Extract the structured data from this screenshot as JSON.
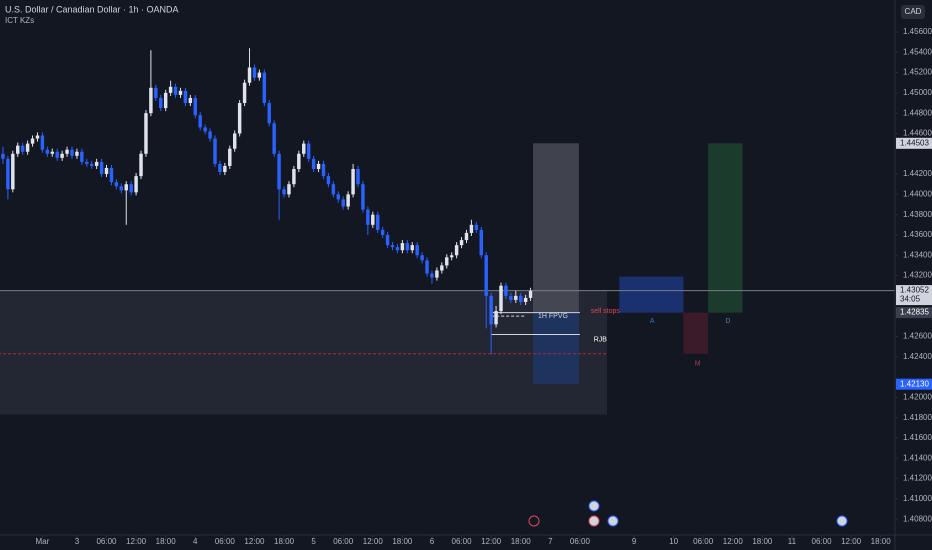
{
  "chart_data": {
    "type": "candlestick",
    "title": "U.S. Dollar / Canadian Dollar · 1h · OANDA",
    "indicator": "ICT KZs",
    "currency": "CAD",
    "up_color": "#e0e3eb",
    "down_color": "#2962ff",
    "xlim": [
      -15.6,
      165.9
    ],
    "ylim": [
      1.40644,
      1.45915
    ],
    "xticks": [
      {
        "value": -7,
        "label": "Mar"
      },
      {
        "value": 0,
        "label": "3"
      },
      {
        "value": 6,
        "label": "06:00"
      },
      {
        "value": 12,
        "label": "12:00"
      },
      {
        "value": 18,
        "label": "18:00"
      },
      {
        "value": 24,
        "label": "4"
      },
      {
        "value": 30,
        "label": "06:00"
      },
      {
        "value": 36,
        "label": "12:00"
      },
      {
        "value": 42,
        "label": "18:00"
      },
      {
        "value": 48,
        "label": "5"
      },
      {
        "value": 54,
        "label": "06:00"
      },
      {
        "value": 60,
        "label": "12:00"
      },
      {
        "value": 66,
        "label": "18:00"
      },
      {
        "value": 72,
        "label": "6"
      },
      {
        "value": 78,
        "label": "06:00"
      },
      {
        "value": 84,
        "label": "12:00"
      },
      {
        "value": 90,
        "label": "18:00"
      },
      {
        "value": 96,
        "label": "7"
      },
      {
        "value": 102,
        "label": "06:00"
      },
      {
        "value": 113,
        "label": "9"
      },
      {
        "value": 121,
        "label": "10"
      },
      {
        "value": 127,
        "label": "06:00"
      },
      {
        "value": 133,
        "label": "12:00"
      },
      {
        "value": 139,
        "label": "18:00"
      },
      {
        "value": 145,
        "label": "11"
      },
      {
        "value": 151,
        "label": "06:00"
      },
      {
        "value": 157,
        "label": "12:00"
      },
      {
        "value": 163,
        "label": "18:00"
      }
    ],
    "yticks": [
      {
        "value": 1.456,
        "label": "1.45600"
      },
      {
        "value": 1.454,
        "label": "1.45400"
      },
      {
        "value": 1.452,
        "label": "1.45200"
      },
      {
        "value": 1.45,
        "label": "1.45000"
      },
      {
        "value": 1.448,
        "label": "1.44800"
      },
      {
        "value": 1.446,
        "label": "1.44600"
      },
      {
        "value": 1.442,
        "label": "1.44200"
      },
      {
        "value": 1.44,
        "label": "1.44000"
      },
      {
        "value": 1.438,
        "label": "1.43800"
      },
      {
        "value": 1.436,
        "label": "1.43600"
      },
      {
        "value": 1.434,
        "label": "1.43400"
      },
      {
        "value": 1.432,
        "label": "1.43200"
      },
      {
        "value": 1.426,
        "label": "1.42600"
      },
      {
        "value": 1.424,
        "label": "1.42400"
      },
      {
        "value": 1.42,
        "label": "1.42000"
      },
      {
        "value": 1.418,
        "label": "1.41800"
      },
      {
        "value": 1.416,
        "label": "1.41600"
      },
      {
        "value": 1.414,
        "label": "1.41400"
      },
      {
        "value": 1.412,
        "label": "1.41200"
      },
      {
        "value": 1.41,
        "label": "1.41000"
      },
      {
        "value": 1.408,
        "label": "1.40800"
      }
    ],
    "x": [
      -15,
      -14,
      -13,
      -12,
      -11,
      -10,
      -9,
      -8,
      -7,
      -6,
      -5,
      -4,
      -3,
      -2,
      -1,
      0,
      1,
      2,
      3,
      4,
      5,
      6,
      7,
      8,
      9,
      10,
      11,
      12,
      13,
      14,
      15,
      16,
      17,
      18,
      19,
      20,
      21,
      22,
      23,
      24,
      25,
      26,
      27,
      28,
      29,
      30,
      31,
      32,
      33,
      34,
      35,
      36,
      37,
      38,
      39,
      40,
      41,
      42,
      43,
      44,
      45,
      46,
      47,
      48,
      49,
      50,
      51,
      52,
      53,
      54,
      55,
      56,
      57,
      58,
      59,
      60,
      61,
      62,
      63,
      64,
      65,
      66,
      67,
      68,
      69,
      70,
      71,
      72,
      73,
      74,
      75,
      76,
      77,
      78,
      79,
      80,
      81,
      82,
      83,
      84,
      85,
      86,
      87,
      88,
      89,
      90,
      91,
      92
    ],
    "candles": [
      [
        1.444,
        1.4447,
        1.443,
        1.4435
      ],
      [
        1.4435,
        1.4438,
        1.4395,
        1.4405
      ],
      [
        1.4405,
        1.4443,
        1.4402,
        1.444
      ],
      [
        1.444,
        1.4451,
        1.4437,
        1.4448
      ],
      [
        1.4448,
        1.4451,
        1.4439,
        1.4442
      ],
      [
        1.4442,
        1.4453,
        1.4439,
        1.445
      ],
      [
        1.445,
        1.4458,
        1.4447,
        1.4455
      ],
      [
        1.4455,
        1.4461,
        1.4452,
        1.4458
      ],
      [
        1.4458,
        1.4461,
        1.4441,
        1.4444
      ],
      [
        1.4444,
        1.4447,
        1.4437,
        1.444
      ],
      [
        1.444,
        1.4445,
        1.4437,
        1.4442
      ],
      [
        1.4442,
        1.4445,
        1.4433,
        1.4436
      ],
      [
        1.4436,
        1.4443,
        1.4433,
        1.444
      ],
      [
        1.444,
        1.4447,
        1.4437,
        1.4444
      ],
      [
        1.4444,
        1.4447,
        1.4435,
        1.4438
      ],
      [
        1.4438,
        1.4445,
        1.4435,
        1.4442
      ],
      [
        1.4442,
        1.4445,
        1.4429,
        1.4432
      ],
      [
        1.4432,
        1.4435,
        1.4427,
        1.443
      ],
      [
        1.443,
        1.4433,
        1.4425,
        1.4428
      ],
      [
        1.4428,
        1.4435,
        1.4425,
        1.4432
      ],
      [
        1.4432,
        1.4435,
        1.4417,
        1.442
      ],
      [
        1.442,
        1.4429,
        1.4417,
        1.4426
      ],
      [
        1.4426,
        1.4429,
        1.4409,
        1.4412
      ],
      [
        1.4412,
        1.4415,
        1.4405,
        1.4408
      ],
      [
        1.4408,
        1.4411,
        1.4401,
        1.4404
      ],
      [
        1.4404,
        1.4413,
        1.437,
        1.441
      ],
      [
        1.441,
        1.4413,
        1.4399,
        1.4402
      ],
      [
        1.4402,
        1.4421,
        1.4399,
        1.4418
      ],
      [
        1.4418,
        1.4443,
        1.4415,
        1.444
      ],
      [
        1.444,
        1.4483,
        1.4437,
        1.448
      ],
      [
        1.448,
        1.4542,
        1.4477,
        1.4505
      ],
      [
        1.4505,
        1.4508,
        1.4492,
        1.4495
      ],
      [
        1.4495,
        1.4498,
        1.4482,
        1.4485
      ],
      [
        1.4485,
        1.4503,
        1.4482,
        1.45
      ],
      [
        1.45,
        1.4512,
        1.4497,
        1.4506
      ],
      [
        1.4506,
        1.4509,
        1.4495,
        1.4498
      ],
      [
        1.4498,
        1.4505,
        1.4495,
        1.4502
      ],
      [
        1.4502,
        1.4505,
        1.4487,
        1.449
      ],
      [
        1.449,
        1.4498,
        1.4487,
        1.4495
      ],
      [
        1.4495,
        1.4498,
        1.4475,
        1.4478
      ],
      [
        1.4478,
        1.4481,
        1.4463,
        1.4466
      ],
      [
        1.4466,
        1.4469,
        1.4459,
        1.4462
      ],
      [
        1.4462,
        1.4465,
        1.4452,
        1.4455
      ],
      [
        1.4455,
        1.4458,
        1.4427,
        1.443
      ],
      [
        1.443,
        1.4433,
        1.4419,
        1.4422
      ],
      [
        1.4422,
        1.4431,
        1.4419,
        1.4428
      ],
      [
        1.4428,
        1.4448,
        1.4425,
        1.4445
      ],
      [
        1.4445,
        1.4463,
        1.4442,
        1.446
      ],
      [
        1.446,
        1.4493,
        1.4457,
        1.449
      ],
      [
        1.449,
        1.4513,
        1.4487,
        1.451
      ],
      [
        1.451,
        1.4544,
        1.4507,
        1.4525
      ],
      [
        1.4525,
        1.4528,
        1.4512,
        1.4515
      ],
      [
        1.4515,
        1.4523,
        1.4512,
        1.452
      ],
      [
        1.452,
        1.4523,
        1.4487,
        1.449
      ],
      [
        1.449,
        1.4493,
        1.4467,
        1.447
      ],
      [
        1.447,
        1.4473,
        1.4437,
        1.444
      ],
      [
        1.444,
        1.4443,
        1.4375,
        1.4405
      ],
      [
        1.4405,
        1.4408,
        1.4397,
        1.44
      ],
      [
        1.44,
        1.4413,
        1.4397,
        1.441
      ],
      [
        1.441,
        1.4428,
        1.4407,
        1.4425
      ],
      [
        1.4425,
        1.4443,
        1.4422,
        1.444
      ],
      [
        1.444,
        1.4453,
        1.4437,
        1.445
      ],
      [
        1.445,
        1.4453,
        1.4432,
        1.4435
      ],
      [
        1.4435,
        1.4438,
        1.4422,
        1.4425
      ],
      [
        1.4425,
        1.4433,
        1.4422,
        1.443
      ],
      [
        1.443,
        1.4433,
        1.4415,
        1.4418
      ],
      [
        1.4418,
        1.4421,
        1.4407,
        1.441
      ],
      [
        1.441,
        1.4413,
        1.4397,
        1.44
      ],
      [
        1.44,
        1.4403,
        1.4392,
        1.4395
      ],
      [
        1.4395,
        1.4398,
        1.4385,
        1.4388
      ],
      [
        1.4388,
        1.4403,
        1.4385,
        1.44
      ],
      [
        1.44,
        1.443,
        1.4397,
        1.4425
      ],
      [
        1.4425,
        1.4428,
        1.4407,
        1.441
      ],
      [
        1.441,
        1.4413,
        1.4382,
        1.4385
      ],
      [
        1.4385,
        1.4388,
        1.436,
        1.437
      ],
      [
        1.437,
        1.4383,
        1.4367,
        1.438
      ],
      [
        1.438,
        1.4383,
        1.4362,
        1.4365
      ],
      [
        1.4365,
        1.4368,
        1.4357,
        1.436
      ],
      [
        1.436,
        1.4363,
        1.4347,
        1.435
      ],
      [
        1.435,
        1.4353,
        1.4345,
        1.4348
      ],
      [
        1.4348,
        1.4351,
        1.4342,
        1.4345
      ],
      [
        1.4345,
        1.4355,
        1.4342,
        1.4352
      ],
      [
        1.4352,
        1.4355,
        1.4342,
        1.4345
      ],
      [
        1.4345,
        1.4353,
        1.4342,
        1.435
      ],
      [
        1.435,
        1.4353,
        1.4337,
        1.434
      ],
      [
        1.434,
        1.4343,
        1.4332,
        1.4335
      ],
      [
        1.4335,
        1.4338,
        1.4319,
        1.4322
      ],
      [
        1.4322,
        1.4325,
        1.4312,
        1.4318
      ],
      [
        1.4318,
        1.4328,
        1.4315,
        1.4325
      ],
      [
        1.4325,
        1.4333,
        1.4322,
        1.433
      ],
      [
        1.433,
        1.4341,
        1.4327,
        1.4338
      ],
      [
        1.4338,
        1.4343,
        1.4335,
        1.434
      ],
      [
        1.434,
        1.4353,
        1.4337,
        1.435
      ],
      [
        1.435,
        1.4358,
        1.4347,
        1.4355
      ],
      [
        1.4355,
        1.4365,
        1.4352,
        1.4362
      ],
      [
        1.4362,
        1.4375,
        1.4359,
        1.437
      ],
      [
        1.437,
        1.4373,
        1.4362,
        1.4365
      ],
      [
        1.4365,
        1.4368,
        1.4337,
        1.434
      ],
      [
        1.434,
        1.4343,
        1.4268,
        1.43
      ],
      [
        1.43,
        1.4303,
        1.4242,
        1.4272
      ],
      [
        1.4272,
        1.429,
        1.4269,
        1.4285
      ],
      [
        1.4285,
        1.4313,
        1.4282,
        1.431
      ],
      [
        1.431,
        1.4313,
        1.4297,
        1.43
      ],
      [
        1.43,
        1.4303,
        1.4293,
        1.4296
      ],
      [
        1.4296,
        1.4305,
        1.4293,
        1.43
      ],
      [
        1.43,
        1.4303,
        1.4291,
        1.4294
      ],
      [
        1.4294,
        1.4301,
        1.4291,
        1.4298
      ],
      [
        1.4298,
        1.4308,
        1.4295,
        1.4305
      ]
    ],
    "zones": [
      {
        "x": [
          -16,
          107.5
        ],
        "y": [
          1.4183,
          1.43052
        ],
        "color": "#2a2e39"
      },
      {
        "x": [
          92.5,
          101.8
        ],
        "y": [
          1.42835,
          1.44503
        ],
        "color": "#50535e"
      },
      {
        "x": [
          92.5,
          101.8
        ],
        "y": [
          1.4213,
          1.42835
        ],
        "color": "#1e3a6e"
      },
      {
        "x": [
          110,
          123
        ],
        "y": [
          1.42835,
          1.4319
        ],
        "color": "#1e3a8a"
      },
      {
        "x": [
          123,
          128
        ],
        "y": [
          1.4243,
          1.42835
        ],
        "color": "#4a1e2e"
      },
      {
        "x": [
          128,
          135
        ],
        "y": [
          1.42835,
          1.44503
        ],
        "color": "#1f4a32"
      }
    ],
    "lines": [
      {
        "x": [
          -16,
          165.9
        ],
        "y": 1.43052,
        "color": "#787b86",
        "dash": false
      },
      {
        "x": [
          -16,
          107.5
        ],
        "y": 1.4243,
        "color": "#b22833",
        "dash": true
      },
      {
        "x": [
          84,
          102
        ],
        "y": 1.42835,
        "color": "#d1d4dc",
        "dash": false
      },
      {
        "x": [
          84,
          91
        ],
        "y": 1.428,
        "color": "#d1d4dc",
        "dash": true
      },
      {
        "x": [
          84,
          102
        ],
        "y": 1.4262,
        "color": "#d1d4dc",
        "dash": false
      }
    ],
    "annotations": [
      {
        "text": "1H FPVG",
        "x": 93.5,
        "y": 1.428,
        "color": "#d1d4dc"
      },
      {
        "text": "sell stops",
        "x": 104.2,
        "y": 1.4285,
        "color": "#e0455a"
      },
      {
        "text": "RJB",
        "x": 104.8,
        "y": 1.4257,
        "color": "#ffffff"
      },
      {
        "text": "A",
        "x": 116.2,
        "y": 1.4275,
        "color": "#3b6fe0"
      },
      {
        "text": "M",
        "x": 125.3,
        "y": 1.4233,
        "color": "#b23a55"
      },
      {
        "text": "D",
        "x": 131.5,
        "y": 1.4275,
        "color": "#5d7fa8"
      }
    ],
    "price_labels": [
      {
        "value": 1.44503,
        "bg": "#d1d4dc",
        "fg": "#131722"
      },
      {
        "value": 1.43052,
        "bg": "#d1d4dc",
        "fg": "#131722",
        "countdown": "34:05"
      },
      {
        "value": 1.42835,
        "bg": "#3a3f4f",
        "fg": "#ffffff"
      },
      {
        "value": 1.4213,
        "label": "1.42130",
        "bg": "#2962ff",
        "fg": "#ffffff"
      }
    ]
  }
}
